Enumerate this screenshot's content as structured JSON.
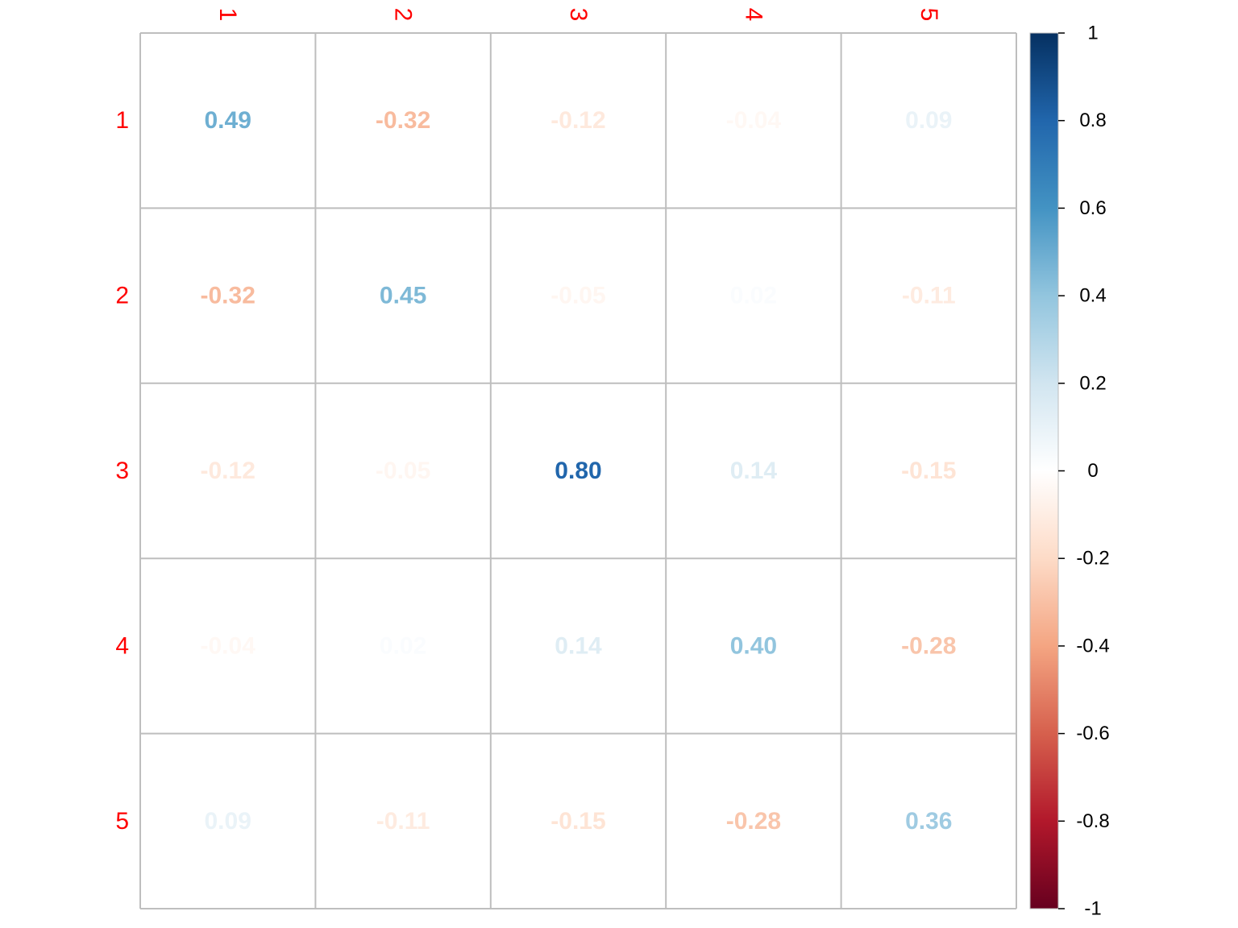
{
  "chart_data": {
    "type": "heatmap",
    "row_labels": [
      "1",
      "2",
      "3",
      "4",
      "5"
    ],
    "col_labels": [
      "1",
      "2",
      "3",
      "4",
      "5"
    ],
    "values": [
      [
        0.49,
        -0.32,
        -0.12,
        -0.04,
        0.09
      ],
      [
        -0.32,
        0.45,
        -0.05,
        0.02,
        -0.11
      ],
      [
        -0.12,
        -0.05,
        0.8,
        0.14,
        -0.15
      ],
      [
        -0.04,
        0.02,
        0.14,
        0.4,
        -0.28
      ],
      [
        0.09,
        -0.11,
        -0.15,
        -0.28,
        0.36
      ]
    ],
    "value_labels": [
      [
        "0.49",
        "-0.32",
        "-0.12",
        "-0.04",
        "0.09"
      ],
      [
        "-0.32",
        "0.45",
        "-0.05",
        "0.02",
        "-0.11"
      ],
      [
        "-0.12",
        "-0.05",
        "0.80",
        "0.14",
        "-0.15"
      ],
      [
        "-0.04",
        "0.02",
        "0.14",
        "0.40",
        "-0.28"
      ],
      [
        "0.09",
        "-0.11",
        "-0.15",
        "-0.28",
        "0.36"
      ]
    ],
    "colorbar": {
      "range": [
        -1,
        1
      ],
      "ticks": [
        1,
        0.8,
        0.6,
        0.4,
        0.2,
        0,
        -0.2,
        -0.4,
        -0.6,
        -0.8,
        -1
      ],
      "tick_labels": [
        "1",
        "0.8",
        "0.6",
        "0.4",
        "0.2",
        "0",
        "-0.2",
        "-0.4",
        "-0.6",
        "-0.8",
        "-1"
      ],
      "palette": [
        "#67001F",
        "#B2182B",
        "#D6604D",
        "#F4A582",
        "#FDDBC7",
        "#FFFFFF",
        "#D1E5F0",
        "#92C5DE",
        "#4393C3",
        "#2166AC",
        "#053061"
      ]
    },
    "label_color": "#FF0000",
    "grid_color": "#BEBEBE",
    "legend_position": "right"
  }
}
